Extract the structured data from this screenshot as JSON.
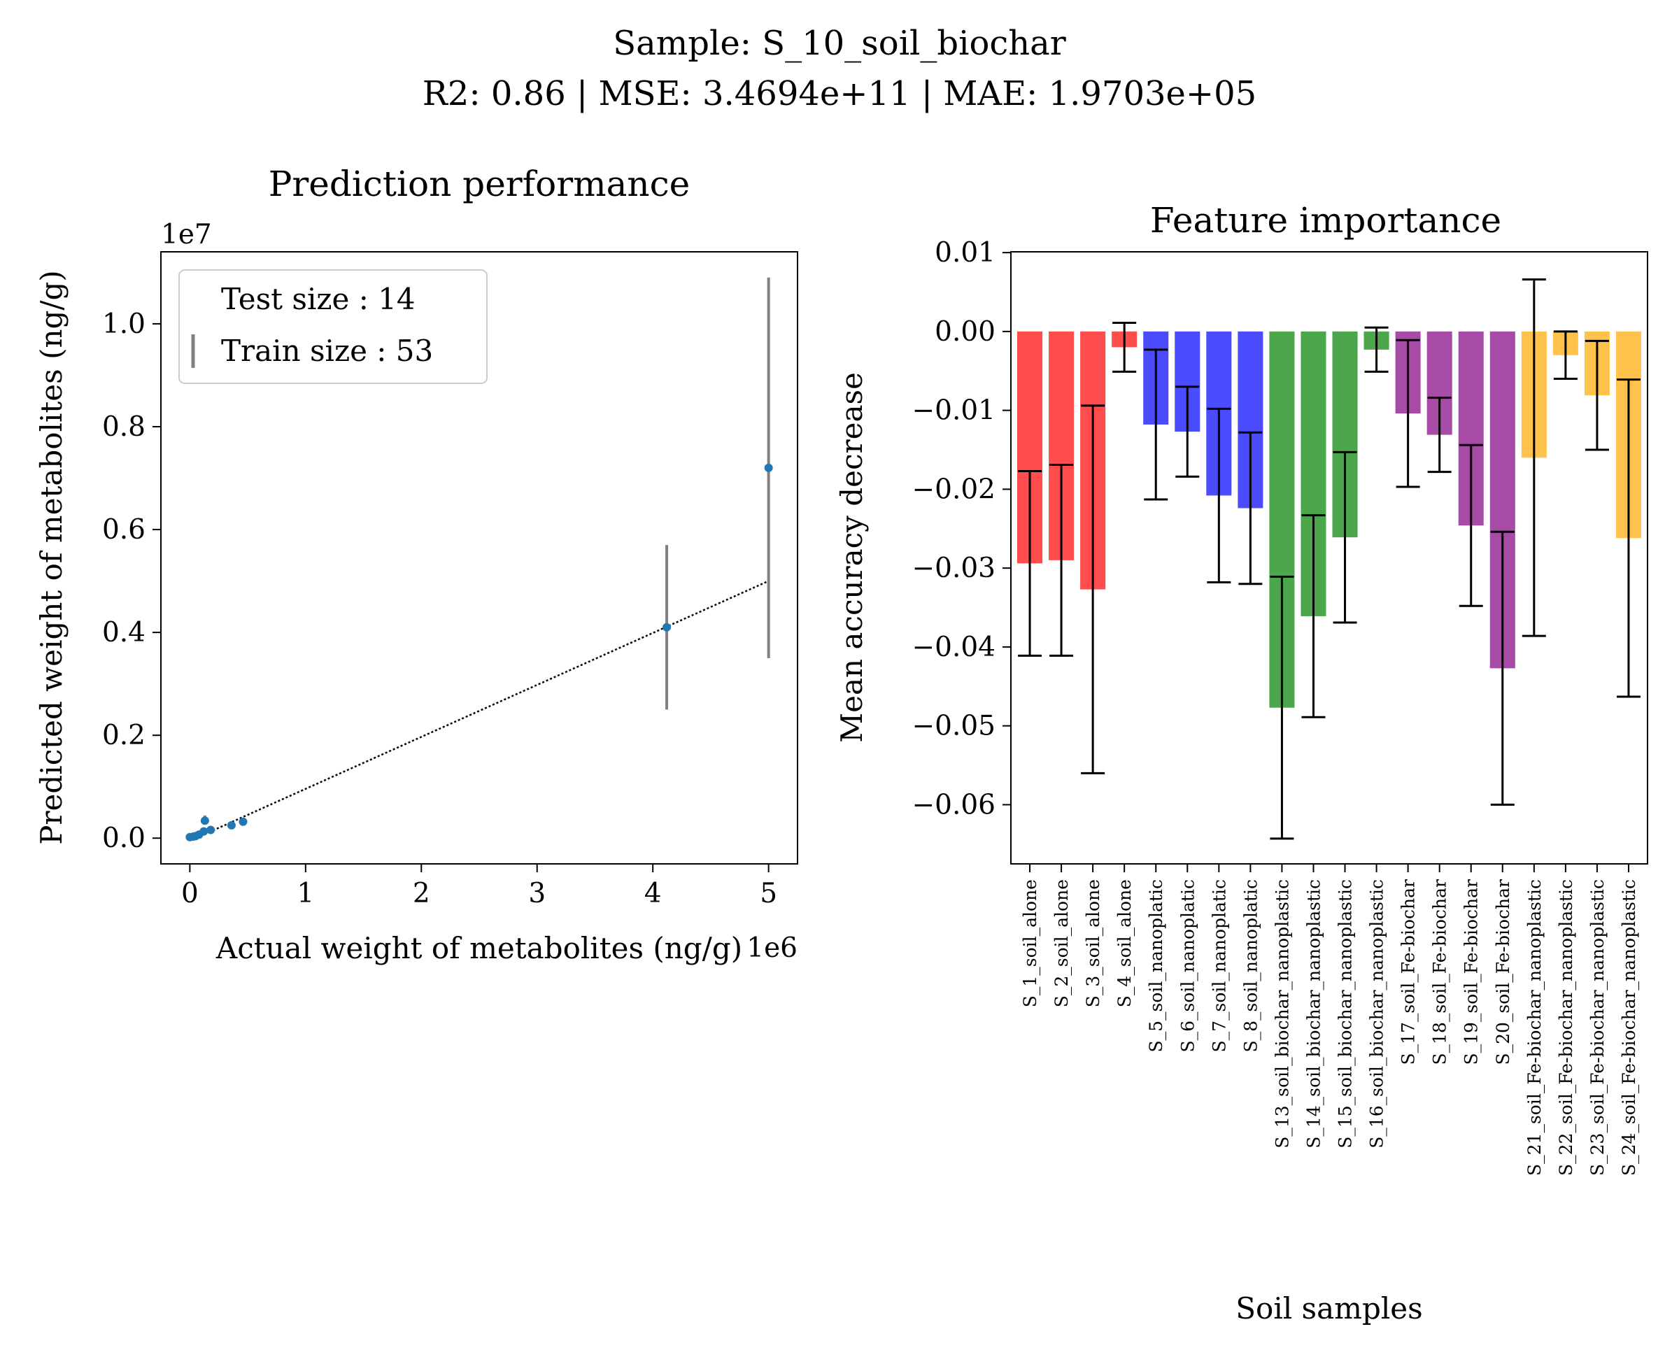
{
  "figure": {
    "suptitle_line1": "Sample: S_10_soil_biochar",
    "suptitle_line2": "R2: 0.86 | MSE: 3.4694e+11 | MAE: 1.9703e+05"
  },
  "chart_data": [
    {
      "type": "scatter",
      "title": "Prediction performance",
      "xlabel": "Actual weight of metabolites (ng/g)",
      "ylabel": "Predicted weight of metabolites (ng/g)",
      "x_offset_text": "1e6",
      "y_offset_text": "1e7",
      "xlim": [
        -0.25,
        5.25
      ],
      "ylim": [
        -0.05,
        1.14
      ],
      "x_ticks": [
        0,
        1,
        2,
        3,
        4,
        5
      ],
      "x_tick_labels": [
        "0",
        "1",
        "2",
        "3",
        "4",
        "5"
      ],
      "y_ticks": [
        0.0,
        0.2,
        0.4,
        0.6,
        0.8,
        1.0
      ],
      "y_tick_labels": [
        "0.0",
        "0.2",
        "0.4",
        "0.6",
        "0.8",
        "1.0"
      ],
      "legend": {
        "placement": "upper-left",
        "entries": [
          "Test size : 14",
          "Train size : 53"
        ]
      },
      "points": [
        {
          "x": 0.0,
          "y": 0.002
        },
        {
          "x": 0.03,
          "y": 0.003
        },
        {
          "x": 0.05,
          "y": 0.004
        },
        {
          "x": 0.08,
          "y": 0.007
        },
        {
          "x": 0.12,
          "y": 0.013
        },
        {
          "x": 0.13,
          "y": 0.034
        },
        {
          "x": 0.18,
          "y": 0.016
        },
        {
          "x": 0.36,
          "y": 0.025
        },
        {
          "x": 0.46,
          "y": 0.032
        },
        {
          "x": 4.12,
          "y": 0.41
        },
        {
          "x": 5.0,
          "y": 0.72
        }
      ],
      "error_bars": [
        {
          "x": 0.13,
          "low": 0.027,
          "high": 0.044
        },
        {
          "x": 4.12,
          "low": 0.25,
          "high": 0.57
        },
        {
          "x": 5.0,
          "low": 0.35,
          "high": 1.09
        }
      ],
      "fit_line": {
        "x": [
          0.2,
          5.0
        ],
        "y": [
          0.015,
          0.5
        ]
      },
      "colors": {
        "points": "#1f77b4",
        "error_bars": "#808080",
        "fit_line": "#000000"
      }
    },
    {
      "type": "bar",
      "title": "Feature importance",
      "xlabel": "Soil samples",
      "ylabel": "Mean accuracy decrease",
      "ylim": [
        -0.0675,
        0.0101
      ],
      "y_ticks": [
        0.01,
        0.0,
        -0.01,
        -0.02,
        -0.03,
        -0.04,
        -0.05,
        -0.06
      ],
      "y_tick_labels": [
        "0.01",
        "0.00",
        "−0.01",
        "−0.02",
        "−0.03",
        "−0.04",
        "−0.05",
        "−0.06"
      ],
      "categories": [
        "S_1_soil_alone",
        "S_2_soil_alone",
        "S_3_soil_alone",
        "S_4_soil_alone",
        "S_5_soil_nanoplatic",
        "S_6_soil_nanoplatic",
        "S_7_soil_nanoplatic",
        "S_8_soil_nanoplatic",
        "S_13_soil_biochar_nanoplastic",
        "S_14_soil_biochar_nanoplastic",
        "S_15_soil_biochar_nanoplastic",
        "S_16_soil_biochar_nanoplastic",
        "S_17_soil_Fe-biochar",
        "S_18_soil_Fe-biochar",
        "S_19_soil_Fe-biochar",
        "S_20_soil_Fe-biochar",
        "S_21_soil_Fe-biochar_nanoplastic",
        "S_22_soil_Fe-biochar_nanoplastic",
        "S_23_soil_Fe-biochar_nanoplastic",
        "S_24_soil_Fe-biochar_nanoplastic"
      ],
      "values": [
        -0.0294,
        -0.029,
        -0.0327,
        -0.002,
        -0.0118,
        -0.0127,
        -0.0208,
        -0.0224,
        -0.0477,
        -0.0361,
        -0.0261,
        -0.0023,
        -0.0104,
        -0.0131,
        -0.0246,
        -0.0427,
        -0.016,
        -0.003,
        -0.0081,
        -0.0262
      ],
      "errors": [
        0.0117,
        0.0121,
        0.0233,
        0.0031,
        0.0095,
        0.0057,
        0.011,
        0.0096,
        0.0166,
        0.0128,
        0.0108,
        0.0028,
        0.0093,
        0.0047,
        0.0102,
        0.0173,
        0.0226,
        0.003,
        0.0069,
        0.0201
      ],
      "bar_colors": [
        "#ff4c4c",
        "#ff4c4c",
        "#ff4c4c",
        "#ff4c4c",
        "#4c4cff",
        "#4c4cff",
        "#4c4cff",
        "#4c4cff",
        "#4ca64c",
        "#4ca64c",
        "#4ca64c",
        "#4ca64c",
        "#a64ca6",
        "#a64ca6",
        "#a64ca6",
        "#a64ca6",
        "#ffc24c",
        "#ffc24c",
        "#ffc24c",
        "#ffc24c"
      ]
    }
  ]
}
